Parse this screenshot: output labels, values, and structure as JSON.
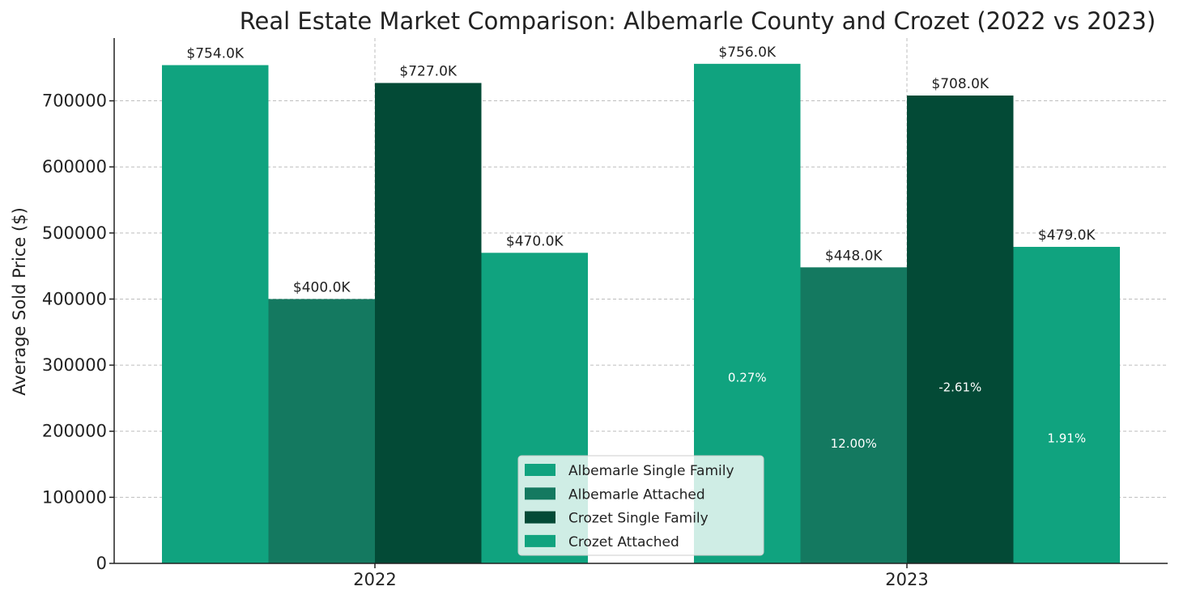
{
  "chart_data": {
    "type": "bar",
    "title": "Real Estate Market Comparison: Albemarle County and Crozet (2022 vs 2023)",
    "xlabel": "",
    "ylabel": "Average Sold Price ($)",
    "categories": [
      "2022",
      "2023"
    ],
    "ylim": [
      0,
      795000
    ],
    "yticks": [
      0,
      100000,
      200000,
      300000,
      400000,
      500000,
      600000,
      700000
    ],
    "ytick_labels": [
      "0",
      "100000",
      "200000",
      "300000",
      "400000",
      "500000",
      "600000",
      "700000"
    ],
    "grid": true,
    "legend_position": "bottom-center",
    "series": [
      {
        "name": "Albemarle Single Family",
        "color": "#10a37f",
        "values": [
          754000,
          756000
        ],
        "value_labels": [
          "$754.0K",
          "$756.0K"
        ],
        "change_label": "0.27%",
        "change_label_value": 275000
      },
      {
        "name": "Albemarle Attached",
        "color": "#147960",
        "values": [
          400000,
          448000
        ],
        "value_labels": [
          "$400.0K",
          "$448.0K"
        ],
        "change_label": "12.00%",
        "change_label_value": 175000
      },
      {
        "name": "Crozet Single Family",
        "color": "#034a36",
        "values": [
          727000,
          708000
        ],
        "value_labels": [
          "$727.0K",
          "$708.0K"
        ],
        "change_label": "-2.61%",
        "change_label_value": 260000
      },
      {
        "name": "Crozet Attached",
        "color": "#10a37f",
        "values": [
          470000,
          479000
        ],
        "value_labels": [
          "$470.0K",
          "$479.0K"
        ],
        "change_label": "1.91%",
        "change_label_value": 183000
      }
    ]
  }
}
